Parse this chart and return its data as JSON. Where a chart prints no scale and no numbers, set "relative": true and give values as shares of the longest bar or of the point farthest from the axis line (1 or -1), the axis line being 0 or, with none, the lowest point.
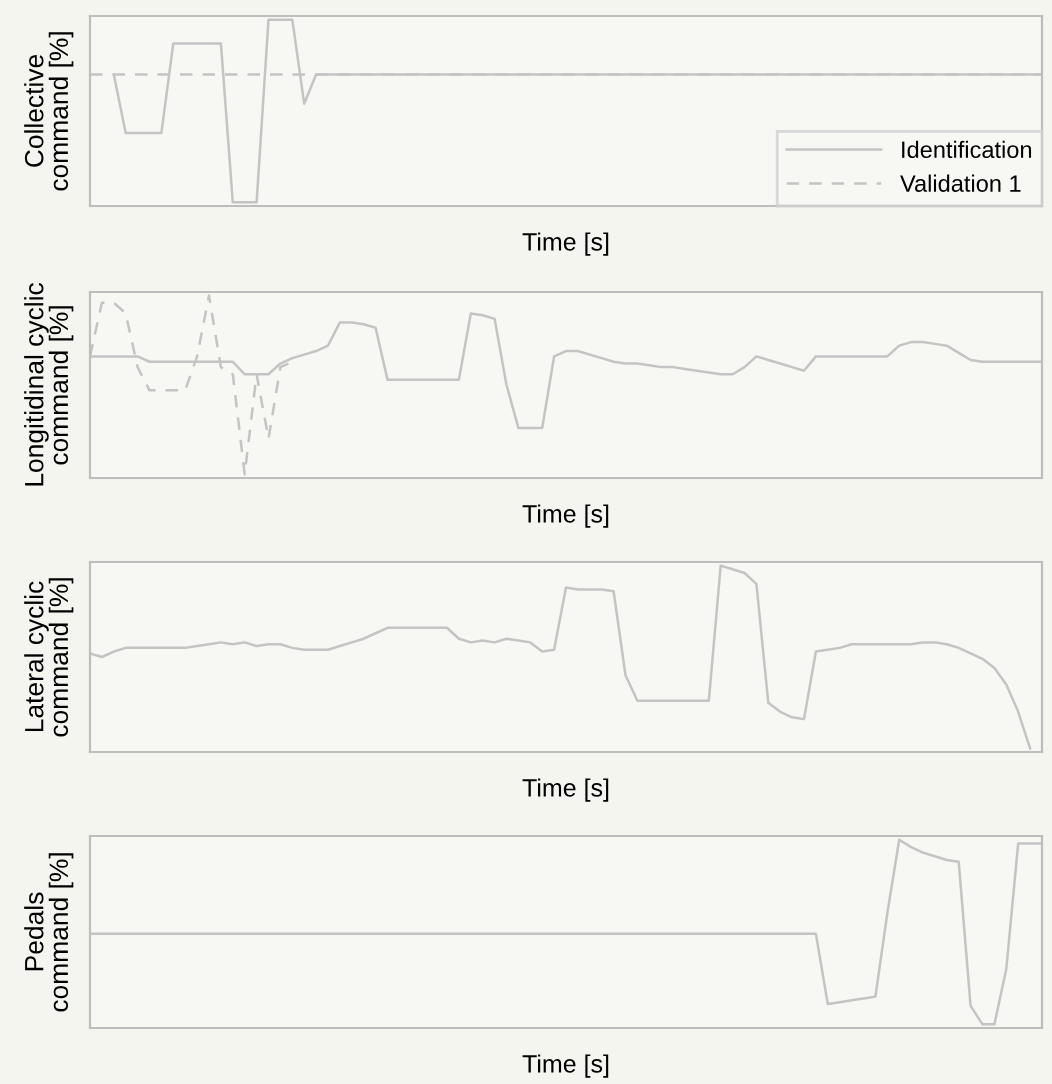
{
  "chart_data": [
    {
      "type": "line",
      "relative": true,
      "ylabel": "Collective\ncommand [%]",
      "xlabel": "Time [s]",
      "legend": "bottom right",
      "grid": false,
      "categories": [
        null,
        null,
        null,
        null,
        null,
        null,
        null,
        null,
        null,
        null,
        null,
        null,
        null,
        null,
        null,
        null,
        null,
        null,
        null,
        null,
        null,
        null,
        null,
        null,
        null,
        null,
        null,
        null,
        null,
        null,
        null,
        null,
        null,
        null,
        null,
        null,
        null,
        null,
        null,
        null,
        null,
        null,
        null,
        null,
        null,
        null,
        null,
        null,
        null,
        null,
        null,
        null,
        null,
        null,
        null,
        null,
        null,
        null,
        null,
        null,
        null,
        null,
        null,
        null,
        null,
        null,
        null,
        null,
        null,
        null,
        null,
        null,
        null,
        null,
        null,
        null,
        null,
        null,
        null,
        null,
        null
      ],
      "series": [
        {
          "name": "Identification",
          "color": "#c4c4c4",
          "line_style": "solid",
          "values": [
            null,
            null,
            0.7,
            0.38,
            0.38,
            0.38,
            0.38,
            0.87,
            0.87,
            0.87,
            0.87,
            0.87,
            0,
            0,
            0,
            1,
            1,
            1,
            0.54,
            0.7,
            0.7,
            0.7,
            0.7,
            0.7,
            0.7,
            0.7,
            0.7,
            0.7,
            0.7,
            0.7,
            0.7,
            0.7,
            0.7,
            0.7,
            0.7,
            0.7,
            0.7,
            0.7,
            0.7,
            0.7,
            0.7,
            0.7,
            0.7,
            0.7,
            0.7,
            0.7,
            0.7,
            0.7,
            0.7,
            0.7,
            0.7,
            0.7,
            0.7,
            0.7,
            0.7,
            0.7,
            0.7,
            0.7,
            0.7,
            0.7,
            0.7,
            0.7,
            0.7,
            0.7,
            0.7,
            0.7,
            0.7,
            0.7,
            0.7,
            0.7,
            0.7,
            0.7,
            0.7,
            0.7,
            0.7,
            0.7,
            0.7,
            0.7,
            0.7,
            0.7,
            0.7
          ]
        },
        {
          "name": "Validation 1",
          "color": "#c4c4c4",
          "line_style": "dashed",
          "values": [
            0.7,
            0.7,
            0.7,
            0.7,
            0.7,
            0.7,
            0.7,
            0.7,
            0.7,
            0.7,
            0.7,
            0.7,
            0.7,
            0.7,
            0.7,
            0.7,
            0.7,
            0.7,
            0.7,
            0.7,
            0.7,
            0.7,
            0.7,
            0.7,
            0.7,
            0.7,
            0.7,
            0.7,
            0.7,
            0.7,
            0.7,
            0.7,
            0.7,
            0.7,
            0.7,
            0.7,
            0.7,
            0.7,
            0.7,
            0.7,
            0.7,
            0.7,
            0.7,
            0.7,
            0.7,
            0.7,
            0.7,
            0.7,
            0.7,
            0.7,
            0.7,
            0.7,
            0.7,
            0.7,
            0.7,
            0.7,
            0.7,
            0.7,
            0.7,
            0.7,
            0.7,
            0.7,
            0.7,
            0.7,
            0.7,
            0.7,
            0.7,
            0.7,
            0.7,
            0.7,
            0.7,
            0.7,
            0.7,
            0.7,
            0.7,
            0.7,
            0.7,
            0.7,
            0.7,
            0.7,
            0.7
          ]
        }
      ]
    },
    {
      "type": "line",
      "relative": true,
      "ylabel": "Longitidinal cyclic\ncommand [%]",
      "xlabel": "Time [s]",
      "grid": false,
      "categories": [
        null,
        null,
        null,
        null,
        null,
        null,
        null,
        null,
        null,
        null,
        null,
        null,
        null,
        null,
        null,
        null,
        null,
        null,
        null,
        null,
        null,
        null,
        null,
        null,
        null,
        null,
        null,
        null,
        null,
        null,
        null,
        null,
        null,
        null,
        null,
        null,
        null,
        null,
        null,
        null,
        null,
        null,
        null,
        null,
        null,
        null,
        null,
        null,
        null,
        null,
        null,
        null,
        null,
        null,
        null,
        null,
        null,
        null,
        null,
        null,
        null,
        null,
        null,
        null,
        null,
        null,
        null,
        null,
        null,
        null,
        null,
        null,
        null,
        null,
        null,
        null,
        null,
        null,
        null,
        null,
        null
      ],
      "series": [
        {
          "color": "#c4c4c4",
          "line_style": "solid",
          "values": [
            0.66,
            0.66,
            0.66,
            0.66,
            0.66,
            0.63,
            0.63,
            0.63,
            0.63,
            0.63,
            0.63,
            0.63,
            0.63,
            0.56,
            0.56,
            0.56,
            0.62,
            0.65,
            0.67,
            0.69,
            0.72,
            0.85,
            0.85,
            0.84,
            0.82,
            0.53,
            0.53,
            0.53,
            0.53,
            0.53,
            0.53,
            0.53,
            0.9,
            0.89,
            0.87,
            0.5,
            0.26,
            0.26,
            0.26,
            0.66,
            0.69,
            0.69,
            0.67,
            0.65,
            0.63,
            0.62,
            0.62,
            0.61,
            0.6,
            0.6,
            0.59,
            0.58,
            0.57,
            0.56,
            0.56,
            0.6,
            0.66,
            0.64,
            0.62,
            0.6,
            0.58,
            0.66,
            0.66,
            0.66,
            0.66,
            0.66,
            0.66,
            0.66,
            0.72,
            0.74,
            0.74,
            0.73,
            0.72,
            0.68,
            0.64,
            0.63,
            0.63,
            0.63,
            0.63,
            0.63,
            0.63
          ]
        },
        {
          "color": "#c4c4c4",
          "line_style": "dashed",
          "values": [
            0.66,
            0.96,
            0.96,
            0.9,
            0.6,
            0.47,
            0.47,
            0.47,
            0.47,
            0.66,
            1.0,
            0.6,
            0.56,
            0.0,
            0.56,
            0.2,
            0.6,
            0.63,
            null,
            null,
            null,
            null,
            null,
            null,
            null,
            null,
            null,
            null,
            null,
            null,
            null,
            null,
            null,
            null,
            null,
            null,
            null,
            null,
            null,
            null,
            null,
            null,
            null,
            null,
            null,
            null,
            null,
            null,
            null,
            null,
            null,
            null,
            null,
            null,
            null,
            null,
            null,
            null,
            null,
            null,
            null,
            null,
            null,
            null,
            null,
            null,
            null,
            null,
            null,
            null,
            null,
            null,
            null,
            null,
            null,
            null,
            null,
            null,
            null,
            null,
            null
          ]
        }
      ]
    },
    {
      "type": "line",
      "relative": true,
      "ylabel": "Lateral cyclic\ncommand [%]",
      "xlabel": "Time [s]",
      "grid": false,
      "categories": [
        null,
        null,
        null,
        null,
        null,
        null,
        null,
        null,
        null,
        null,
        null,
        null,
        null,
        null,
        null,
        null,
        null,
        null,
        null,
        null,
        null,
        null,
        null,
        null,
        null,
        null,
        null,
        null,
        null,
        null,
        null,
        null,
        null,
        null,
        null,
        null,
        null,
        null,
        null,
        null,
        null,
        null,
        null,
        null,
        null,
        null,
        null,
        null,
        null,
        null,
        null,
        null,
        null,
        null,
        null,
        null,
        null,
        null,
        null,
        null,
        null,
        null,
        null,
        null,
        null,
        null,
        null,
        null,
        null,
        null,
        null,
        null,
        null,
        null,
        null,
        null,
        null,
        null,
        null,
        null,
        null
      ],
      "series": [
        {
          "color": "#c4c4c4",
          "line_style": "solid",
          "values": [
            0.52,
            0.5,
            0.53,
            0.55,
            0.55,
            0.55,
            0.55,
            0.55,
            0.55,
            0.56,
            0.57,
            0.58,
            0.57,
            0.58,
            0.56,
            0.57,
            0.57,
            0.55,
            0.54,
            0.54,
            0.54,
            0.56,
            0.58,
            0.6,
            0.63,
            0.66,
            0.66,
            0.66,
            0.66,
            0.66,
            0.66,
            0.6,
            0.58,
            0.59,
            0.58,
            0.6,
            0.59,
            0.58,
            0.53,
            0.54,
            0.88,
            0.87,
            0.87,
            0.87,
            0.86,
            0.4,
            0.26,
            0.26,
            0.26,
            0.26,
            0.26,
            0.26,
            0.26,
            1.0,
            0.98,
            0.96,
            0.9,
            0.25,
            0.2,
            0.17,
            0.16,
            0.53,
            0.54,
            0.55,
            0.57,
            0.57,
            0.57,
            0.57,
            0.57,
            0.57,
            0.58,
            0.58,
            0.57,
            0.55,
            0.52,
            0.49,
            0.44,
            0.35,
            0.2,
            0.0,
            null
          ]
        }
      ]
    },
    {
      "type": "line",
      "relative": true,
      "ylabel": "Pedals\ncommand [%]",
      "xlabel": "Time [s]",
      "grid": false,
      "categories": [
        null,
        null,
        null,
        null,
        null,
        null,
        null,
        null,
        null,
        null,
        null,
        null,
        null,
        null,
        null,
        null,
        null,
        null,
        null,
        null,
        null,
        null,
        null,
        null,
        null,
        null,
        null,
        null,
        null,
        null,
        null,
        null,
        null,
        null,
        null,
        null,
        null,
        null,
        null,
        null,
        null,
        null,
        null,
        null,
        null,
        null,
        null,
        null,
        null,
        null,
        null,
        null,
        null,
        null,
        null,
        null,
        null,
        null,
        null,
        null,
        null,
        null,
        null,
        null,
        null,
        null,
        null,
        null,
        null,
        null,
        null,
        null,
        null,
        null,
        null,
        null,
        null,
        null,
        null,
        null,
        null
      ],
      "series": [
        {
          "color": "#c4c4c4",
          "line_style": "solid",
          "values": [
            0.49,
            0.49,
            0.49,
            0.49,
            0.49,
            0.49,
            0.49,
            0.49,
            0.49,
            0.49,
            0.49,
            0.49,
            0.49,
            0.49,
            0.49,
            0.49,
            0.49,
            0.49,
            0.49,
            0.49,
            0.49,
            0.49,
            0.49,
            0.49,
            0.49,
            0.49,
            0.49,
            0.49,
            0.49,
            0.49,
            0.49,
            0.49,
            0.49,
            0.49,
            0.49,
            0.49,
            0.49,
            0.49,
            0.49,
            0.49,
            0.49,
            0.49,
            0.49,
            0.49,
            0.49,
            0.49,
            0.49,
            0.49,
            0.49,
            0.49,
            0.49,
            0.49,
            0.49,
            0.49,
            0.49,
            0.49,
            0.49,
            0.49,
            0.49,
            0.49,
            0.49,
            0.49,
            0.11,
            0.12,
            0.13,
            0.14,
            0.15,
            0.6,
            1.0,
            0.96,
            0.93,
            0.91,
            0.89,
            0.88,
            0.1,
            0.0,
            0.0,
            0.3,
            0.98,
            0.98,
            0.98
          ]
        }
      ]
    }
  ]
}
